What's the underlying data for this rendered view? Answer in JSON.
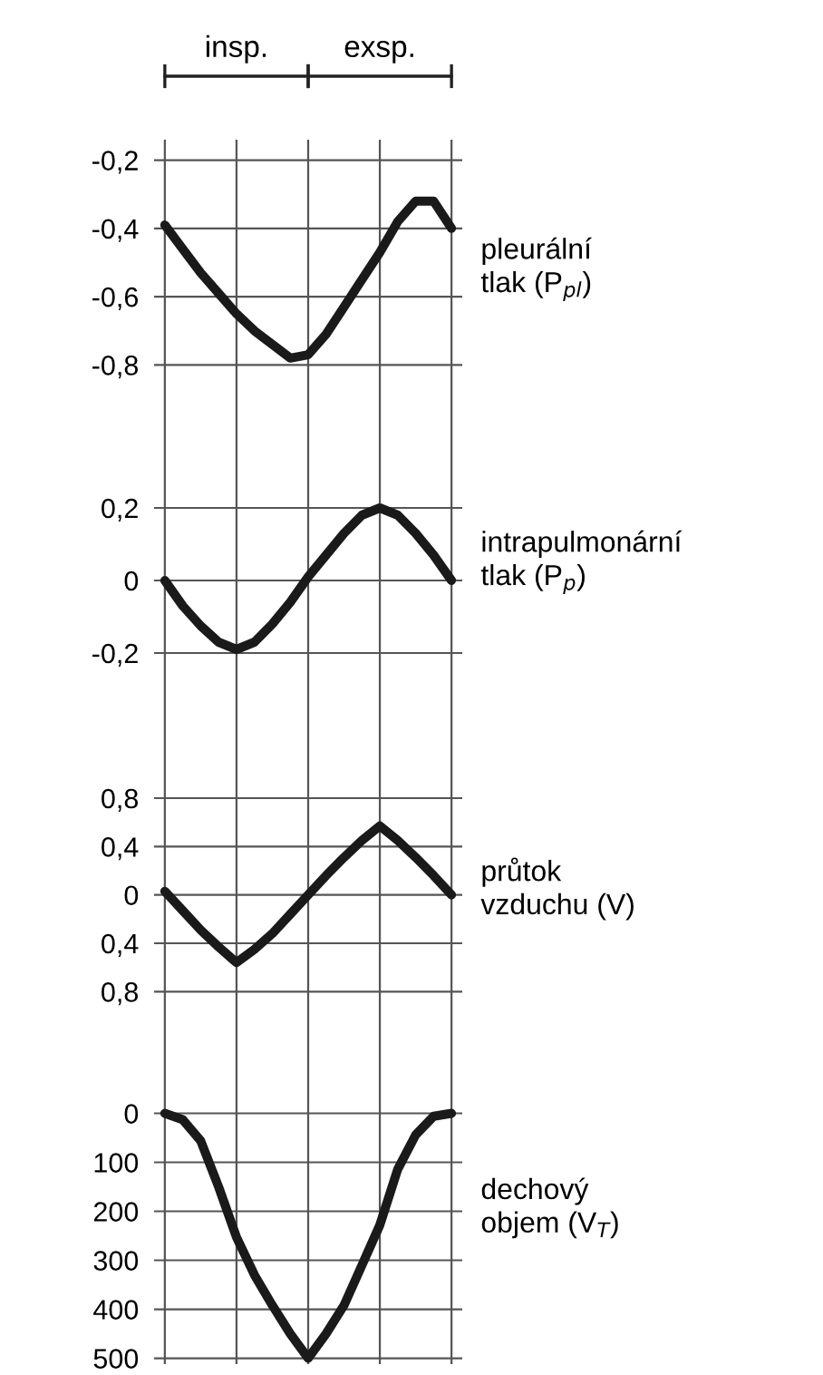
{
  "chart_data": [
    {
      "type": "line",
      "categories": [
        null,
        null,
        null,
        null,
        null,
        null,
        null,
        null,
        null,
        null,
        null,
        null,
        null,
        null,
        null,
        null,
        null
      ],
      "series": [
        {
          "name": "pleurální\ntlak (P$_{pl}$)",
          "color": "#1a1a1a",
          "values": [
            -0.39,
            -0.46,
            -0.53,
            -0.59,
            -0.65,
            -0.7,
            -0.74,
            -0.78,
            -0.77,
            -0.71,
            -0.63,
            -0.55,
            -0.47,
            -0.38,
            -0.32,
            -0.32,
            -0.4
          ]
        }
      ],
      "ylim": [
        -0.9,
        -0.14
      ],
      "yticks": [
        {
          "value": -0.2,
          "label": "-0,2"
        },
        {
          "value": -0.4,
          "label": "-0,4"
        },
        {
          "value": -0.6,
          "label": "-0,6"
        },
        {
          "value": -0.8,
          "label": "-0,8"
        }
      ],
      "annotations": [
        "insp.",
        "exsp."
      ],
      "grid": true,
      "line_style": "solid",
      "marker": "none"
    },
    {
      "type": "line",
      "categories": [
        null,
        null,
        null,
        null,
        null,
        null,
        null,
        null,
        null,
        null,
        null,
        null,
        null,
        null,
        null,
        null,
        null
      ],
      "series": [
        {
          "name": "intrapulmonární\ntlak (P$_{p}$)",
          "color": "#1a1a1a",
          "values": [
            0,
            -0.07,
            -0.125,
            -0.17,
            -0.19,
            -0.17,
            -0.12,
            -0.06,
            0.01,
            0.07,
            0.13,
            0.18,
            0.2,
            0.18,
            0.13,
            0.07,
            0
          ]
        }
      ],
      "ylim": [
        -0.4,
        0.5
      ],
      "yticks": [
        {
          "value": 0.2,
          "label": "0,2"
        },
        0,
        {
          "value": -0.2,
          "label": "-0,2"
        }
      ],
      "grid": true,
      "line_style": "solid",
      "marker": "none"
    },
    {
      "type": "line",
      "categories": [
        null,
        null,
        null,
        null,
        null,
        null,
        null,
        null,
        null,
        null,
        null,
        null,
        null,
        null,
        null,
        null,
        null
      ],
      "series": [
        {
          "name": "průtok\nvzduchu (V)",
          "color": "#1a1a1a",
          "values": [
            0.03,
            -0.13,
            -0.29,
            -0.43,
            -0.56,
            -0.45,
            -0.32,
            -0.16,
            0,
            0.16,
            0.31,
            0.45,
            0.57,
            0.45,
            0.31,
            0.16,
            0
          ]
        }
      ],
      "ylim": [
        -1.3,
        1.4
      ],
      "yticks": [
        {
          "value": 0.8,
          "label": "0,8"
        },
        {
          "value": 0.4,
          "label": "0,4"
        },
        0,
        {
          "value": -0.4,
          "label": "0,4"
        },
        {
          "value": -0.8,
          "label": "0,8"
        }
      ],
      "grid": true,
      "line_style": "solid",
      "marker": "none"
    },
    {
      "type": "line",
      "categories": [
        null,
        null,
        null,
        null,
        null,
        null,
        null,
        null,
        null,
        null,
        null,
        null,
        null,
        null,
        null,
        null,
        null
      ],
      "series": [
        {
          "name": "dechový\nobjem (V$_{T}$)",
          "color": "#1a1a1a",
          "values": [
            0,
            13,
            56,
            150,
            253,
            330,
            392,
            450,
            500,
            450,
            392,
            310,
            228,
            114,
            44,
            6,
            0
          ]
        }
      ],
      "ylim": [
        512,
        -125
      ],
      "yticks": [
        0,
        100,
        200,
        300,
        400,
        500
      ],
      "grid": true,
      "line_style": "solid",
      "marker": "none"
    }
  ]
}
